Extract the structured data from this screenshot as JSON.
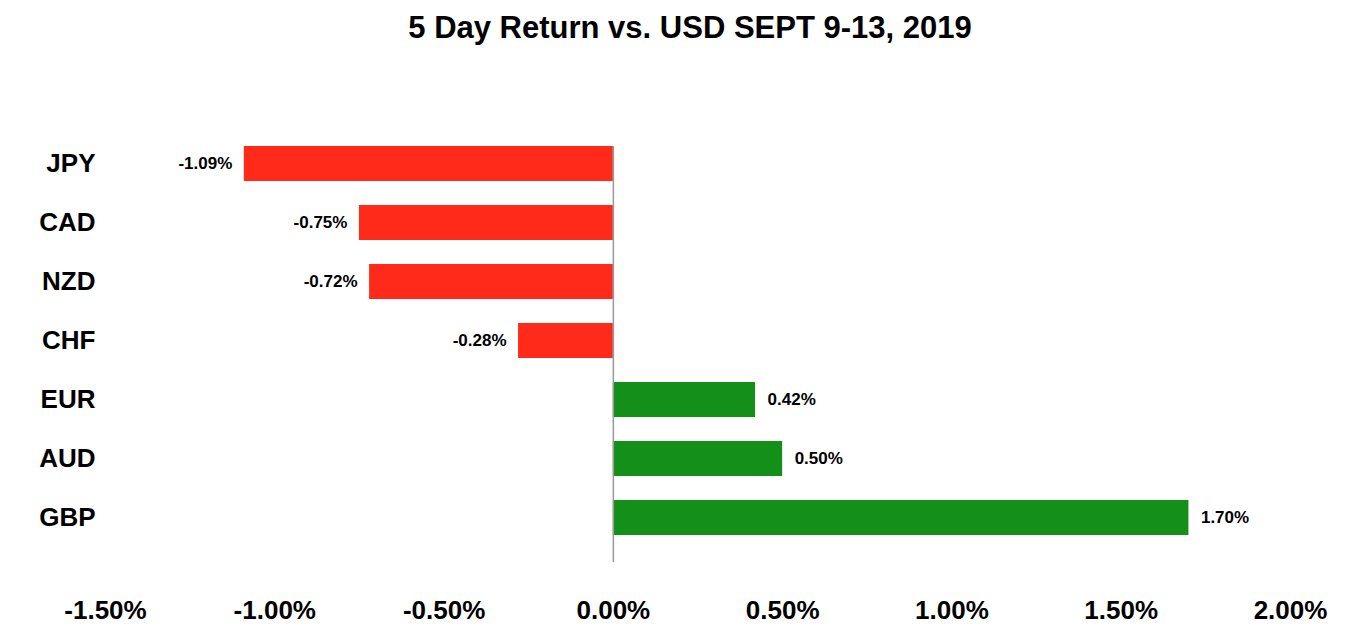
{
  "chart_data": {
    "type": "bar",
    "title": "5 Day Return vs. USD SEPT 9-13, 2019",
    "orientation": "horizontal",
    "categories": [
      "JPY",
      "CAD",
      "NZD",
      "CHF",
      "EUR",
      "AUD",
      "GBP"
    ],
    "values": [
      -1.09,
      -0.75,
      -0.72,
      -0.28,
      0.42,
      0.5,
      1.7
    ],
    "value_labels": [
      "-1.09%",
      "-0.75%",
      "-0.72%",
      "-0.28%",
      "0.42%",
      "0.50%",
      "1.70%"
    ],
    "colors": [
      "#ff2a1a",
      "#ff2a1a",
      "#ff2a1a",
      "#ff2a1a",
      "#14901a",
      "#14901a",
      "#14901a"
    ],
    "xlim": [
      -1.5,
      2.0
    ],
    "xticks": [
      {
        "value": -1.5,
        "label": "-1.50%"
      },
      {
        "value": -1.0,
        "label": "-1.00%"
      },
      {
        "value": -0.5,
        "label": "-0.50%"
      },
      {
        "value": 0,
        "label": "0.00%"
      },
      {
        "value": 0.5,
        "label": "0.50%"
      },
      {
        "value": 1.0,
        "label": "1.00%"
      },
      {
        "value": 1.5,
        "label": "1.50%"
      },
      {
        "value": 2.0,
        "label": "2.00%"
      }
    ],
    "grid": false,
    "data_labels": true
  }
}
